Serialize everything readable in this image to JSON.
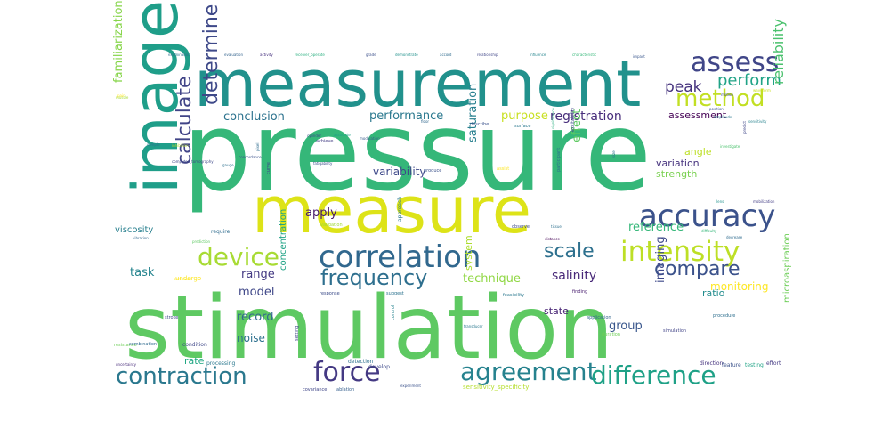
{
  "words": [
    {
      "text": "pressure",
      "color": "#35b779"
    },
    {
      "text": "measurement",
      "color": "#21918c"
    },
    {
      "text": "stimulation",
      "color": "#5ec962"
    },
    {
      "text": "measure",
      "color": "#dde318"
    },
    {
      "text": "image",
      "color": "#1f9e89"
    },
    {
      "text": "accuracy",
      "color": "#3b528b"
    },
    {
      "text": "correlation",
      "color": "#31688e"
    },
    {
      "text": "intensity",
      "color": "#bddf26"
    },
    {
      "text": "device",
      "color": "#a8db34"
    },
    {
      "text": "assess",
      "color": "#404688"
    },
    {
      "text": "method",
      "color": "#c2df23"
    },
    {
      "text": "force",
      "color": "#443983"
    },
    {
      "text": "contraction",
      "color": "#2a788e"
    },
    {
      "text": "agreement",
      "color": "#26828e"
    },
    {
      "text": "difference",
      "color": "#1fa187"
    },
    {
      "text": "frequency",
      "color": "#2e6f8e"
    },
    {
      "text": "calculate",
      "color": "#414487"
    },
    {
      "text": "determine",
      "color": "#3e4989"
    },
    {
      "text": "compare",
      "color": "#3b528b"
    },
    {
      "text": "scale",
      "color": "#2d708e"
    },
    {
      "text": "perform",
      "color": "#20a386"
    },
    {
      "text": "peak",
      "color": "#46337e"
    },
    {
      "text": "registration",
      "color": "#472d7b"
    },
    {
      "text": "reliability",
      "color": "#4ac16d"
    },
    {
      "text": "familiarization",
      "color": "#86d549"
    },
    {
      "text": "performance",
      "color": "#2a788e"
    },
    {
      "text": "conclusion",
      "color": "#2c728e"
    },
    {
      "text": "assessment",
      "color": "#440154"
    },
    {
      "text": "purpose",
      "color": "#c8e020"
    },
    {
      "text": "effect",
      "color": "#5ec962"
    },
    {
      "text": "saturation",
      "color": "#277f8e"
    },
    {
      "text": "technique",
      "color": "#90d743"
    },
    {
      "text": "salinity",
      "color": "#482878"
    },
    {
      "text": "range",
      "color": "#443a83"
    },
    {
      "text": "model",
      "color": "#3f4788"
    },
    {
      "text": "task",
      "color": "#25848e"
    },
    {
      "text": "record",
      "color": "#31688e"
    },
    {
      "text": "noise",
      "color": "#2d708e"
    },
    {
      "text": "group",
      "color": "#39568c"
    },
    {
      "text": "imaging",
      "color": "#3e4989"
    },
    {
      "text": "monitoring",
      "color": "#fde725"
    },
    {
      "text": "apply",
      "color": "#481a6c"
    },
    {
      "text": "reference",
      "color": "#35b779"
    },
    {
      "text": "variation",
      "color": "#46337e"
    },
    {
      "text": "angle",
      "color": "#bddf26"
    },
    {
      "text": "strength",
      "color": "#7ad151"
    },
    {
      "text": "variability",
      "color": "#3e4989"
    },
    {
      "text": "system",
      "color": "#addc30"
    },
    {
      "text": "state",
      "color": "#482475"
    },
    {
      "text": "viscosity",
      "color": "#277f8e"
    },
    {
      "text": "concentration",
      "color": "#20a386"
    },
    {
      "text": "microaspiration",
      "color": "#6ece58"
    },
    {
      "text": "ratio",
      "color": "#228c8d"
    },
    {
      "text": "rate",
      "color": "#22a884"
    },
    {
      "text": "examination",
      "color": "#2c728e"
    },
    {
      "text": "evaluation",
      "color": "#33638d"
    },
    {
      "text": "activity",
      "color": "#46307e"
    },
    {
      "text": "receiver_operate",
      "color": "#29af7f"
    },
    {
      "text": "grade",
      "color": "#3c508b"
    },
    {
      "text": "demonstrate",
      "color": "#21918c"
    },
    {
      "text": "accord",
      "color": "#2f6c8e"
    },
    {
      "text": "relationship",
      "color": "#404688"
    },
    {
      "text": "influence",
      "color": "#25858e"
    },
    {
      "text": "characteristic",
      "color": "#35b779"
    },
    {
      "text": "impact",
      "color": "#39568c"
    },
    {
      "text": "condition",
      "color": "#3f4788"
    },
    {
      "text": "processing",
      "color": "#2a788e"
    },
    {
      "text": "detection",
      "color": "#2d708e"
    },
    {
      "text": "develop",
      "color": "#3e4a89"
    },
    {
      "text": "direction",
      "color": "#46337e"
    },
    {
      "text": "feature",
      "color": "#3b528b"
    },
    {
      "text": "testing",
      "color": "#20a386"
    },
    {
      "text": "effort",
      "color": "#443a83"
    },
    {
      "text": "procedure",
      "color": "#2e6f8e"
    },
    {
      "text": "application",
      "color": "#32658e"
    },
    {
      "text": "duration",
      "color": "#6ece58"
    },
    {
      "text": "finding",
      "color": "#481d6f"
    },
    {
      "text": "feasibility",
      "color": "#2a788e"
    },
    {
      "text": "response",
      "color": "#3d4d8a"
    },
    {
      "text": "suggest",
      "color": "#2c728e"
    },
    {
      "text": "sensitivity_specificity",
      "color": "#b5de2b"
    },
    {
      "text": "experiment",
      "color": "#3b528b"
    },
    {
      "text": "covariance",
      "color": "#404688"
    },
    {
      "text": "ablation",
      "color": "#355f8d"
    },
    {
      "text": "uncertainty",
      "color": "#472c7a"
    },
    {
      "text": "resistance",
      "color": "#6ece58"
    },
    {
      "text": "combination",
      "color": "#2f6b8e"
    },
    {
      "text": "stroke",
      "color": "#3e4989"
    },
    {
      "text": "control",
      "color": "#26828e"
    },
    {
      "text": "setting",
      "color": "#3f4788"
    },
    {
      "text": "undergo",
      "color": "#fde725"
    },
    {
      "text": "perceived",
      "color": "#fde725"
    },
    {
      "text": "vibration",
      "color": "#31688e"
    },
    {
      "text": "prediction",
      "color": "#5ec962"
    },
    {
      "text": "require",
      "color": "#2f6c8e"
    },
    {
      "text": "validation",
      "color": "#a0da39"
    },
    {
      "text": "approach",
      "color": "#2a788e"
    },
    {
      "text": "observe",
      "color": "#3e4a89"
    },
    {
      "text": "distance",
      "color": "#440154"
    },
    {
      "text": "tissue",
      "color": "#2d708e"
    },
    {
      "text": "simulation",
      "color": "#414487"
    },
    {
      "text": "transducer",
      "color": "#2a788e"
    },
    {
      "text": "produce",
      "color": "#3b528b"
    },
    {
      "text": "assist",
      "color": "#fde725"
    },
    {
      "text": "participant",
      "color": "#2c728e"
    },
    {
      "text": "significance",
      "color": "#29af7f"
    },
    {
      "text": "excitability",
      "color": "#3f4788"
    },
    {
      "text": "fatigability",
      "color": "#3d4e8a"
    },
    {
      "text": "achieve",
      "color": "#433d84"
    },
    {
      "text": "cylinder",
      "color": "#3e4a89"
    },
    {
      "text": "associate",
      "color": "#1fa187"
    },
    {
      "text": "modulation",
      "color": "#38598c"
    },
    {
      "text": "surface",
      "color": "#2a788e"
    },
    {
      "text": "describe",
      "color": "#3b528b"
    },
    {
      "text": "floor",
      "color": "#31688e"
    },
    {
      "text": "sample",
      "color": "#2c728e"
    },
    {
      "text": "inhibition",
      "color": "#b5de2b"
    },
    {
      "text": "computed_tomography",
      "color": "#3e4989"
    },
    {
      "text": "pain",
      "color": "#fde725"
    },
    {
      "text": "muscle",
      "color": "#a8db34"
    },
    {
      "text": "pixel",
      "color": "#2f6c8e"
    },
    {
      "text": "concordance",
      "color": "#3b528b"
    },
    {
      "text": "gauge",
      "color": "#2d708e"
    },
    {
      "text": "curve",
      "color": "#3e4989"
    },
    {
      "text": "investigate",
      "color": "#4ac16d"
    },
    {
      "text": "sensitivity",
      "color": "#26828e"
    },
    {
      "text": "lens",
      "color": "#21918c"
    },
    {
      "text": "mobilization",
      "color": "#433e85"
    },
    {
      "text": "decrease",
      "color": "#2f6b8e"
    },
    {
      "text": "difficulty",
      "color": "#35b779"
    },
    {
      "text": "position",
      "color": "#3b528b"
    },
    {
      "text": "motion",
      "color": "#3e4a89"
    },
    {
      "text": "amplitude",
      "color": "#2a788e"
    },
    {
      "text": "predict",
      "color": "#3f4788"
    },
    {
      "text": "waveform",
      "color": "#c8e020"
    },
    {
      "text": "size",
      "color": "#2c728e"
    }
  ]
}
